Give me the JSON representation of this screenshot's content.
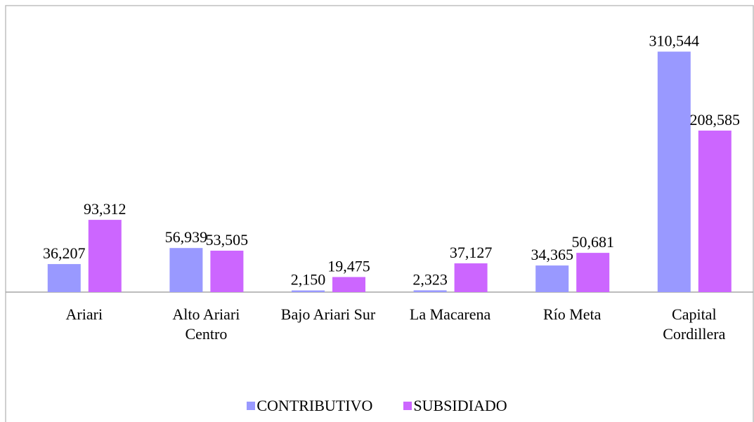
{
  "chart_data": {
    "type": "bar",
    "categories": [
      "Ariari",
      "Alto Ariari Centro",
      "Bajo Ariari Sur",
      "La Macarena",
      "Río Meta",
      "Capital Cordillera"
    ],
    "series": [
      {
        "name": "CONTRIBUTIVO",
        "color": "#9999ff",
        "values": [
          36207,
          56939,
          2150,
          2323,
          34365,
          310544
        ],
        "value_labels": [
          "36,207",
          "56,939",
          "2,150",
          "2,323",
          "34,365",
          "310,544"
        ]
      },
      {
        "name": "SUBSIDIADO",
        "color": "#cc66ff",
        "values": [
          93312,
          53505,
          19475,
          37127,
          50681,
          208585
        ],
        "value_labels": [
          "93,312",
          "53,505",
          "19,475",
          "37,127",
          "50,681",
          "208,585"
        ]
      }
    ],
    "ylim": [
      0,
      350000
    ],
    "legend": "bottom"
  }
}
